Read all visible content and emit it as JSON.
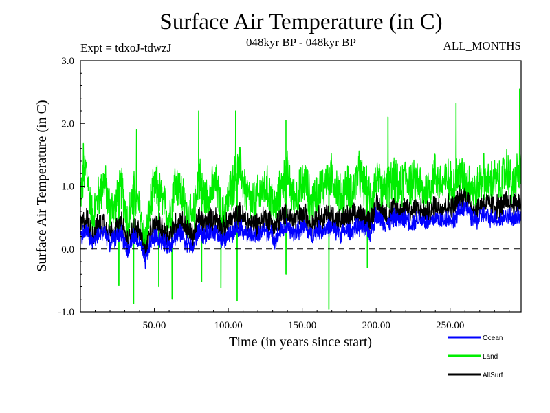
{
  "header": {
    "title": "Surface Air Temperature (in C)",
    "expt": "Expt = tdxoJ-tdwzJ",
    "period": "048kyr BP - 048kyr BP",
    "months": "ALL_MONTHS"
  },
  "chart_data": {
    "type": "line",
    "xlabel": "Time (in years since start)",
    "ylabel": "Surface Air Temperature (in C)",
    "xlim": [
      0,
      298
    ],
    "ylim": [
      -1.0,
      3.0
    ],
    "x_ticks": [
      50,
      100,
      150,
      200,
      250
    ],
    "x_tick_labels": [
      "50.00",
      "100.00",
      "150.00",
      "200.00",
      "250.00"
    ],
    "y_ticks": [
      -1.0,
      0.0,
      1.0,
      2.0,
      3.0
    ],
    "y_tick_labels": [
      "-1.0",
      "0.0",
      "1.0",
      "2.0",
      "3.0"
    ],
    "reference_line": {
      "y": 0.0,
      "style": "dashed"
    },
    "legend_position": "bottom-right",
    "series": [
      {
        "name": "Land",
        "color": "#00ee00",
        "x_start": 0,
        "x_step": 4,
        "values": [
          0.9,
          1.3,
          0.5,
          0.8,
          1.1,
          0.6,
          0.7,
          1.0,
          0.4,
          0.9,
          0.6,
          0.1,
          0.8,
          1.0,
          0.7,
          0.5,
          1.1,
          0.9,
          0.6,
          0.4,
          1.2,
          0.8,
          0.9,
          1.0,
          0.5,
          0.8,
          1.1,
          1.3,
          0.9,
          0.7,
          0.8,
          1.0,
          0.9,
          0.6,
          1.0,
          1.2,
          0.8,
          0.9,
          1.1,
          0.7,
          0.9,
          1.0,
          1.2,
          1.1,
          0.8,
          1.0,
          0.9,
          1.2,
          1.0,
          0.8,
          1.1,
          0.9,
          1.0,
          1.1,
          0.9,
          1.2,
          1.0,
          1.1,
          0.9,
          1.0,
          1.2,
          1.0,
          1.1,
          1.0,
          1.2,
          1.1,
          1.0,
          0.9,
          1.2,
          1.0,
          1.1,
          1.0,
          1.3,
          1.0,
          1.2
        ],
        "highs": [
          {
            "x": 2,
            "y": 1.68
          },
          {
            "x": 38,
            "y": 1.9
          },
          {
            "x": 80,
            "y": 2.2
          },
          {
            "x": 105,
            "y": 2.2
          },
          {
            "x": 139,
            "y": 2.05
          },
          {
            "x": 208,
            "y": 2.1
          },
          {
            "x": 254,
            "y": 2.32
          },
          {
            "x": 297,
            "y": 2.55
          }
        ],
        "lows": [
          {
            "x": 26,
            "y": -0.58
          },
          {
            "x": 36,
            "y": -0.87
          },
          {
            "x": 53,
            "y": -0.6
          },
          {
            "x": 62,
            "y": -0.8
          },
          {
            "x": 82,
            "y": -0.52
          },
          {
            "x": 95,
            "y": -0.62
          },
          {
            "x": 106,
            "y": -0.83
          },
          {
            "x": 139,
            "y": -0.4
          },
          {
            "x": 168,
            "y": -0.96
          },
          {
            "x": 194,
            "y": -0.3
          }
        ]
      },
      {
        "name": "Ocean",
        "color": "#0000ff",
        "x_start": 0,
        "x_step": 4,
        "values": [
          0.2,
          0.3,
          0.1,
          0.2,
          0.3,
          0.1,
          0.2,
          0.25,
          -0.05,
          0.2,
          0.1,
          -0.2,
          0.15,
          0.2,
          0.1,
          0.05,
          0.2,
          0.25,
          0.1,
          0.0,
          0.3,
          0.2,
          0.25,
          0.3,
          0.1,
          0.2,
          0.3,
          0.35,
          0.25,
          0.2,
          0.2,
          0.3,
          0.25,
          0.15,
          0.3,
          0.35,
          0.25,
          0.3,
          0.35,
          0.2,
          0.3,
          0.3,
          0.35,
          0.3,
          0.25,
          0.3,
          0.3,
          0.35,
          0.3,
          0.25,
          0.55,
          0.45,
          0.4,
          0.5,
          0.45,
          0.5,
          0.4,
          0.5,
          0.45,
          0.4,
          0.5,
          0.45,
          0.5,
          0.45,
          0.6,
          0.7,
          0.5,
          0.45,
          0.55,
          0.5,
          0.5,
          0.45,
          0.55,
          0.5,
          0.5
        ]
      },
      {
        "name": "AllSurf",
        "color": "#000000",
        "x_start": 0,
        "x_step": 4,
        "values": [
          0.35,
          0.5,
          0.25,
          0.35,
          0.45,
          0.25,
          0.3,
          0.4,
          0.1,
          0.35,
          0.25,
          -0.05,
          0.3,
          0.4,
          0.3,
          0.2,
          0.4,
          0.45,
          0.3,
          0.2,
          0.5,
          0.4,
          0.45,
          0.5,
          0.3,
          0.4,
          0.5,
          0.55,
          0.45,
          0.4,
          0.4,
          0.5,
          0.45,
          0.35,
          0.5,
          0.55,
          0.45,
          0.5,
          0.55,
          0.4,
          0.5,
          0.5,
          0.55,
          0.5,
          0.45,
          0.5,
          0.5,
          0.55,
          0.5,
          0.45,
          0.7,
          0.6,
          0.55,
          0.65,
          0.6,
          0.7,
          0.6,
          0.65,
          0.6,
          0.55,
          0.7,
          0.65,
          0.7,
          0.65,
          0.8,
          0.85,
          0.7,
          0.6,
          0.75,
          0.7,
          0.7,
          0.65,
          0.75,
          0.7,
          0.75
        ]
      }
    ]
  }
}
